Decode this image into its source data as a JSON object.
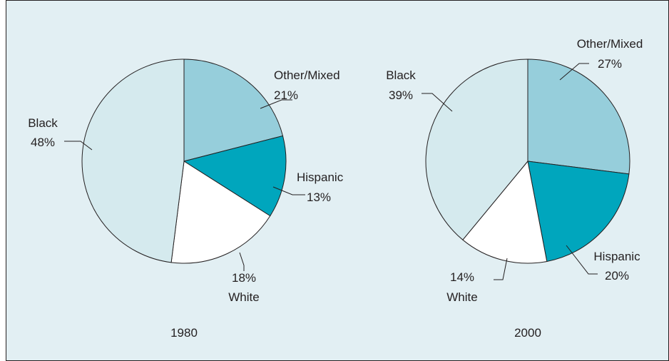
{
  "colors": {
    "panel_background": "#e2eff3",
    "panel_border": "#231f20",
    "slice_outline": "#231f20",
    "leader_line": "#231f20"
  },
  "chart_data": [
    {
      "type": "pie",
      "title": "1980",
      "slices": [
        {
          "label": "Other/Mixed",
          "value": 21,
          "value_label": "21%",
          "color": "#96cedb"
        },
        {
          "label": "Hispanic",
          "value": 13,
          "value_label": "13%",
          "color": "#00a6bd"
        },
        {
          "label": "White",
          "value": 18,
          "value_label": "18%",
          "color": "#ffffff"
        },
        {
          "label": "Black",
          "value": 48,
          "value_label": "48%",
          "color": "#d5eaee"
        }
      ]
    },
    {
      "type": "pie",
      "title": "2000",
      "slices": [
        {
          "label": "Other/Mixed",
          "value": 27,
          "value_label": "27%",
          "color": "#96cedb"
        },
        {
          "label": "Hispanic",
          "value": 20,
          "value_label": "20%",
          "color": "#00a6bd"
        },
        {
          "label": "White",
          "value": 14,
          "value_label": "14%",
          "color": "#ffffff"
        },
        {
          "label": "Black",
          "value": 39,
          "value_label": "39%",
          "color": "#d5eaee"
        }
      ]
    }
  ]
}
